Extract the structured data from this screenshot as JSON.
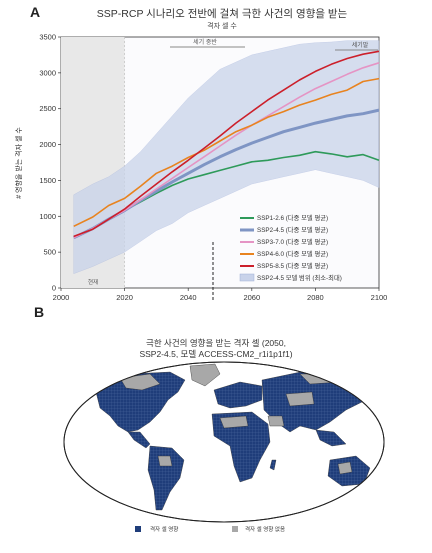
{
  "panel_a": {
    "letter": "A",
    "title": "SSP-RCP 시나리오 전반에 걸쳐 극한 사건의 영향을 받는",
    "subtitle": "격자 셀 수",
    "ylabel": "# 영향을 받는 격자 셀 수",
    "present_label": "현재",
    "mid_century_label": "세기 중반",
    "end_century_label": "세기말"
  },
  "panel_b": {
    "letter": "B",
    "title_line1": "극한 사건의 영향을 받는 격자 셀 (2050,",
    "title_line2": "SSP2-4.5, 모델 ACCESS-CM2_r1i1p1f1)",
    "legend": [
      {
        "label": "격자 셀 영향",
        "color": "#1f3d7a"
      },
      {
        "label": "격자 셀 영향 없음",
        "color": "#a8a8a8"
      }
    ]
  },
  "chart_data": [
    {
      "type": "line",
      "title": "SSP-RCP 시나리오 전반에 걸쳐 극한 사건의 영향을 받는 격자 셀 수",
      "xlabel": "",
      "ylabel": "# 영향을 받는 격자 셀 수",
      "xlim": [
        2000,
        2100
      ],
      "ylim": [
        0,
        3500
      ],
      "xticks": [
        2000,
        2020,
        2040,
        2060,
        2080,
        2100
      ],
      "yticks": [
        0,
        500,
        1000,
        1500,
        2000,
        2500,
        3000,
        3500
      ],
      "grid": false,
      "legend_position": "bottom-right",
      "series": [
        {
          "name": "SSP1-2.6 (다중 모델 평균)",
          "color": "#2e9a5a",
          "x": [
            2004,
            2010,
            2015,
            2020,
            2025,
            2030,
            2035,
            2040,
            2045,
            2050,
            2055,
            2060,
            2065,
            2070,
            2075,
            2080,
            2085,
            2090,
            2095,
            2100
          ],
          "values": [
            700,
            830,
            960,
            1080,
            1200,
            1320,
            1430,
            1520,
            1580,
            1640,
            1700,
            1760,
            1780,
            1820,
            1850,
            1900,
            1870,
            1830,
            1860,
            1780
          ]
        },
        {
          "name": "SSP2-4.5 (다중 모델 평균)",
          "color": "#7f95c4",
          "x": [
            2004,
            2010,
            2015,
            2020,
            2025,
            2030,
            2035,
            2040,
            2045,
            2050,
            2055,
            2060,
            2065,
            2070,
            2075,
            2080,
            2085,
            2090,
            2095,
            2100
          ],
          "values": [
            700,
            830,
            960,
            1080,
            1220,
            1350,
            1480,
            1600,
            1720,
            1830,
            1930,
            2020,
            2100,
            2180,
            2240,
            2300,
            2350,
            2400,
            2430,
            2480
          ]
        },
        {
          "name": "SSP3-7.0 (다중 모델 평균)",
          "color": "#e594c4",
          "x": [
            2004,
            2010,
            2015,
            2020,
            2025,
            2030,
            2035,
            2040,
            2045,
            2050,
            2055,
            2060,
            2065,
            2070,
            2075,
            2080,
            2085,
            2090,
            2095,
            2100
          ],
          "values": [
            700,
            830,
            960,
            1080,
            1230,
            1380,
            1530,
            1680,
            1830,
            1980,
            2130,
            2270,
            2400,
            2530,
            2660,
            2780,
            2880,
            2980,
            3070,
            3140
          ]
        },
        {
          "name": "SSP4-6.0 (다중 모델 평균)",
          "color": "#e8831f",
          "x": [
            2004,
            2010,
            2015,
            2020,
            2025,
            2030,
            2035,
            2040,
            2045,
            2050,
            2055,
            2060,
            2065,
            2070,
            2075,
            2080,
            2085,
            2090,
            2095,
            2100
          ],
          "values": [
            860,
            990,
            1150,
            1250,
            1420,
            1600,
            1700,
            1820,
            1920,
            2050,
            2180,
            2270,
            2380,
            2460,
            2550,
            2620,
            2700,
            2760,
            2880,
            2920
          ]
        },
        {
          "name": "SSP5-8.5 (다중 모델 평균)",
          "color": "#cc1f2a",
          "x": [
            2004,
            2010,
            2015,
            2020,
            2025,
            2030,
            2035,
            2040,
            2045,
            2050,
            2055,
            2060,
            2065,
            2070,
            2075,
            2080,
            2085,
            2090,
            2095,
            2100
          ],
          "values": [
            720,
            820,
            960,
            1100,
            1280,
            1450,
            1620,
            1780,
            1950,
            2120,
            2300,
            2460,
            2620,
            2760,
            2900,
            3020,
            3120,
            3200,
            3260,
            3300
          ]
        }
      ],
      "range_band": {
        "name": "SSP2-4.5 모델 범위 (최소-최대)",
        "color": "#c9d3ea",
        "x": [
          2004,
          2010,
          2015,
          2020,
          2025,
          2030,
          2035,
          2040,
          2045,
          2050,
          2055,
          2060,
          2065,
          2070,
          2075,
          2080,
          2085,
          2090,
          2095,
          2100
        ],
        "min": [
          200,
          300,
          400,
          500,
          650,
          800,
          900,
          1050,
          1150,
          1250,
          1350,
          1450,
          1500,
          1550,
          1600,
          1650,
          1600,
          1550,
          1500,
          1400
        ],
        "max": [
          1300,
          1450,
          1550,
          1700,
          1900,
          2150,
          2400,
          2650,
          2850,
          3050,
          3150,
          3250,
          3300,
          3350,
          3400,
          3420,
          3430,
          3450,
          3450,
          3450
        ]
      }
    }
  ]
}
